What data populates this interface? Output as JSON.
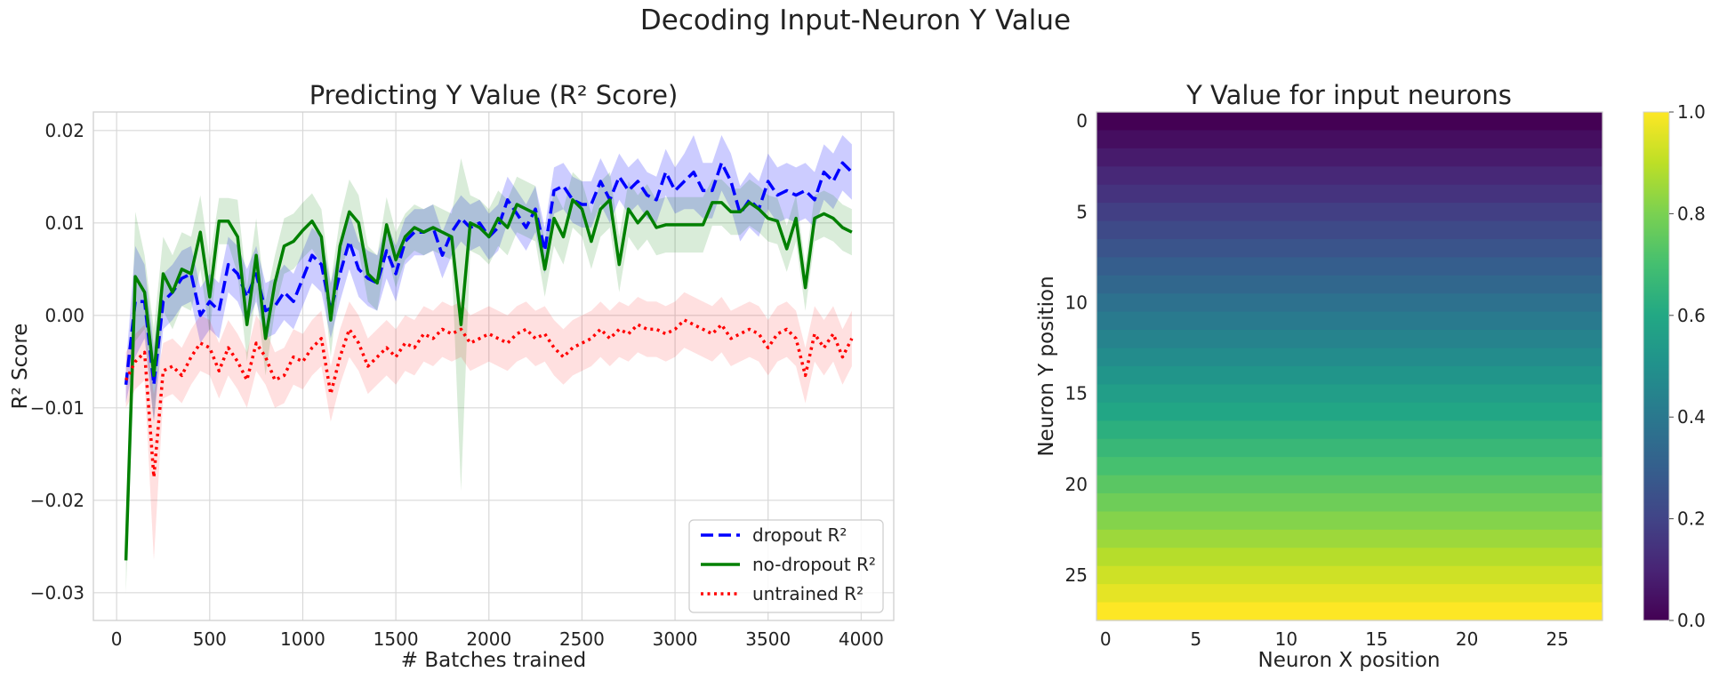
{
  "figure_title": "Decoding Input-Neuron Y Value",
  "chart_data": [
    {
      "type": "line",
      "title": "Predicting Y Value (R² Score)",
      "xlabel": "# Batches trained",
      "ylabel": "R² Score",
      "xlim": [
        -125,
        4175
      ],
      "ylim": [
        -0.033,
        0.022
      ],
      "xticks": [
        0,
        500,
        1000,
        1500,
        2000,
        2500,
        3000,
        3500,
        4000
      ],
      "xtick_labels": [
        "0",
        "500",
        "1000",
        "1500",
        "2000",
        "2500",
        "3000",
        "3500",
        "4000"
      ],
      "yticks": [
        -0.03,
        -0.02,
        -0.01,
        0.0,
        0.01,
        0.02
      ],
      "ytick_labels": [
        "−0.03",
        "−0.02",
        "−0.01",
        "0.00",
        "0.01",
        "0.02"
      ],
      "grid": true,
      "legend_position": "lower-right",
      "x": [
        50,
        100,
        150,
        200,
        250,
        300,
        350,
        400,
        450,
        500,
        550,
        600,
        650,
        700,
        750,
        800,
        850,
        900,
        950,
        1000,
        1050,
        1100,
        1150,
        1200,
        1250,
        1300,
        1350,
        1400,
        1450,
        1500,
        1550,
        1600,
        1650,
        1700,
        1750,
        1800,
        1850,
        1900,
        1950,
        2000,
        2050,
        2100,
        2150,
        2200,
        2250,
        2300,
        2350,
        2400,
        2450,
        2500,
        2550,
        2600,
        2650,
        2700,
        2750,
        2800,
        2850,
        2900,
        2950,
        3000,
        3050,
        3100,
        3150,
        3200,
        3250,
        3300,
        3350,
        3400,
        3450,
        3500,
        3550,
        3600,
        3650,
        3700,
        3750,
        3800,
        3850,
        3900,
        3950
      ],
      "series": [
        {
          "name": "dropout R²",
          "color": "#0000ff",
          "style": "dashed",
          "band_alpha": 0.2,
          "values": [
            -0.0075,
            0.0015,
            0.0015,
            -0.0075,
            0.0015,
            0.0025,
            0.004,
            0.0045,
            0.0,
            0.0015,
            0.0005,
            0.0055,
            0.0045,
            0.002,
            0.0045,
            0.0005,
            0.001,
            0.0025,
            0.0015,
            0.004,
            0.0065,
            0.0055,
            0.0005,
            0.0045,
            0.008,
            0.005,
            0.004,
            0.0035,
            0.007,
            0.0045,
            0.008,
            0.009,
            0.009,
            0.0095,
            0.0065,
            0.009,
            0.0105,
            0.0095,
            0.01,
            0.0085,
            0.0095,
            0.0125,
            0.011,
            0.0095,
            0.0115,
            0.007,
            0.0135,
            0.014,
            0.0125,
            0.012,
            0.012,
            0.0145,
            0.0125,
            0.015,
            0.0135,
            0.0145,
            0.013,
            0.0125,
            0.0155,
            0.0135,
            0.0145,
            0.0155,
            0.0135,
            0.0135,
            0.0165,
            0.0145,
            0.011,
            0.0125,
            0.0115,
            0.0145,
            0.013,
            0.0135,
            0.013,
            0.0135,
            0.0125,
            0.0155,
            0.0145,
            0.0165,
            0.0155
          ],
          "band_halfwidth": [
            0.002,
            0.006,
            0.004,
            0.004,
            0.003,
            0.003,
            0.003,
            0.003,
            0.003,
            0.003,
            0.003,
            0.003,
            0.003,
            0.003,
            0.003,
            0.003,
            0.003,
            0.003,
            0.003,
            0.003,
            0.003,
            0.003,
            0.003,
            0.003,
            0.003,
            0.003,
            0.003,
            0.003,
            0.003,
            0.003,
            0.0025,
            0.0025,
            0.0025,
            0.0025,
            0.0025,
            0.0025,
            0.0025,
            0.0025,
            0.0025,
            0.0025,
            0.0025,
            0.0025,
            0.0025,
            0.0025,
            0.0025,
            0.0025,
            0.0025,
            0.0025,
            0.0025,
            0.0025,
            0.0025,
            0.0025,
            0.0025,
            0.0025,
            0.0025,
            0.0025,
            0.0025,
            0.0025,
            0.0025,
            0.0025,
            0.003,
            0.004,
            0.003,
            0.003,
            0.003,
            0.003,
            0.003,
            0.003,
            0.003,
            0.003,
            0.003,
            0.003,
            0.003,
            0.003,
            0.003,
            0.003,
            0.003,
            0.003,
            0.003
          ]
        },
        {
          "name": "no-dropout R²",
          "color": "#008000",
          "style": "solid",
          "band_alpha": 0.15,
          "values": [
            -0.0265,
            0.0042,
            0.0025,
            -0.0065,
            0.0045,
            0.0025,
            0.005,
            0.0045,
            0.009,
            0.002,
            0.0102,
            0.0102,
            0.0085,
            -0.001,
            0.0065,
            -0.0025,
            0.0035,
            0.0075,
            0.008,
            0.0092,
            0.0102,
            0.0085,
            -0.0005,
            0.0075,
            0.0112,
            0.01,
            0.0045,
            0.0035,
            0.0098,
            0.006,
            0.0085,
            0.0095,
            0.009,
            0.0095,
            0.009,
            0.0085,
            -0.001,
            0.01,
            0.0095,
            0.0085,
            0.0105,
            0.0095,
            0.012,
            0.0115,
            0.011,
            0.005,
            0.0105,
            0.0085,
            0.0125,
            0.0115,
            0.008,
            0.0115,
            0.0125,
            0.0055,
            0.0115,
            0.01,
            0.0112,
            0.0095,
            0.0098,
            0.0098,
            0.0098,
            0.0098,
            0.0098,
            0.0122,
            0.0122,
            0.0112,
            0.0112,
            0.0122,
            0.0115,
            0.0105,
            0.0102,
            0.0072,
            0.0105,
            0.003,
            0.0105,
            0.011,
            0.0105,
            0.0095,
            0.009
          ],
          "band_halfwidth": [
            0.0035,
            0.007,
            0.004,
            0.005,
            0.004,
            0.004,
            0.004,
            0.004,
            0.004,
            0.004,
            0.0025,
            0.0025,
            0.004,
            0.004,
            0.004,
            0.004,
            0.003,
            0.003,
            0.003,
            0.003,
            0.003,
            0.003,
            0.004,
            0.003,
            0.0035,
            0.003,
            0.003,
            0.003,
            0.003,
            0.003,
            0.0025,
            0.0025,
            0.0025,
            0.0025,
            0.0025,
            0.0025,
            0.018,
            0.003,
            0.003,
            0.003,
            0.003,
            0.003,
            0.003,
            0.003,
            0.003,
            0.003,
            0.003,
            0.003,
            0.003,
            0.003,
            0.003,
            0.003,
            0.003,
            0.003,
            0.003,
            0.003,
            0.003,
            0.003,
            0.003,
            0.003,
            0.003,
            0.003,
            0.003,
            0.0025,
            0.0025,
            0.0025,
            0.0025,
            0.0025,
            0.0025,
            0.0025,
            0.0025,
            0.0025,
            0.0025,
            0.0025,
            0.0025,
            0.0025,
            0.0025,
            0.0025,
            0.0025
          ]
        },
        {
          "name": "untrained R²",
          "color": "#ff0000",
          "style": "dotted",
          "band_alpha": 0.12,
          "values": [
            -0.007,
            -0.005,
            -0.004,
            -0.0175,
            -0.006,
            -0.0055,
            -0.0065,
            -0.0045,
            -0.003,
            -0.0035,
            -0.006,
            -0.0035,
            -0.005,
            -0.007,
            -0.003,
            -0.0045,
            -0.007,
            -0.0065,
            -0.0045,
            -0.005,
            -0.0035,
            -0.0025,
            -0.0085,
            -0.0045,
            -0.0015,
            -0.003,
            -0.0055,
            -0.0045,
            -0.0035,
            -0.0045,
            -0.003,
            -0.0035,
            -0.002,
            -0.0025,
            -0.0015,
            -0.002,
            -0.0015,
            -0.003,
            -0.0025,
            -0.002,
            -0.0025,
            -0.003,
            -0.002,
            -0.0015,
            -0.0025,
            -0.002,
            -0.0035,
            -0.0045,
            -0.0035,
            -0.003,
            -0.0025,
            -0.0015,
            -0.0025,
            -0.0015,
            -0.002,
            -0.001,
            -0.0015,
            -0.0015,
            -0.002,
            -0.0015,
            -0.0005,
            -0.001,
            -0.0015,
            -0.002,
            -0.001,
            -0.0025,
            -0.002,
            -0.0015,
            -0.002,
            -0.0035,
            -0.002,
            -0.0015,
            -0.0025,
            -0.0065,
            -0.002,
            -0.0035,
            -0.002,
            -0.0045,
            -0.0025
          ],
          "band_halfwidth": [
            0.003,
            0.003,
            0.003,
            0.009,
            0.003,
            0.003,
            0.003,
            0.003,
            0.003,
            0.003,
            0.003,
            0.003,
            0.003,
            0.003,
            0.003,
            0.003,
            0.003,
            0.003,
            0.003,
            0.003,
            0.003,
            0.003,
            0.003,
            0.003,
            0.003,
            0.003,
            0.003,
            0.003,
            0.003,
            0.003,
            0.003,
            0.003,
            0.003,
            0.003,
            0.003,
            0.003,
            0.003,
            0.003,
            0.003,
            0.003,
            0.003,
            0.003,
            0.003,
            0.003,
            0.003,
            0.003,
            0.003,
            0.003,
            0.003,
            0.003,
            0.003,
            0.003,
            0.003,
            0.003,
            0.003,
            0.003,
            0.003,
            0.003,
            0.003,
            0.003,
            0.003,
            0.003,
            0.003,
            0.003,
            0.003,
            0.003,
            0.003,
            0.003,
            0.003,
            0.003,
            0.003,
            0.003,
            0.003,
            0.003,
            0.003,
            0.003,
            0.003,
            0.003,
            0.003
          ]
        }
      ]
    },
    {
      "type": "heatmap",
      "title": "Y Value for input neurons",
      "xlabel": "Neuron X position",
      "ylabel": "Neuron Y position",
      "grid_size": [
        28,
        28
      ],
      "value_rule": "value = row / 27 (constant across each row)",
      "row_values": [
        0.0,
        0.037,
        0.074,
        0.111,
        0.148,
        0.185,
        0.222,
        0.259,
        0.296,
        0.333,
        0.37,
        0.407,
        0.444,
        0.481,
        0.519,
        0.556,
        0.593,
        0.63,
        0.667,
        0.704,
        0.741,
        0.778,
        0.815,
        0.852,
        0.889,
        0.926,
        0.963,
        1.0
      ],
      "colormap": "viridis",
      "xticks": [
        0,
        5,
        10,
        15,
        20,
        25
      ],
      "yticks": [
        0,
        5,
        10,
        15,
        20,
        25
      ],
      "colorbar": {
        "range": [
          0.0,
          1.0
        ],
        "ticks": [
          0.0,
          0.2,
          0.4,
          0.6,
          0.8,
          1.0
        ],
        "tick_labels": [
          "0.0",
          "0.2",
          "0.4",
          "0.6",
          "0.8",
          "1.0"
        ]
      }
    }
  ]
}
